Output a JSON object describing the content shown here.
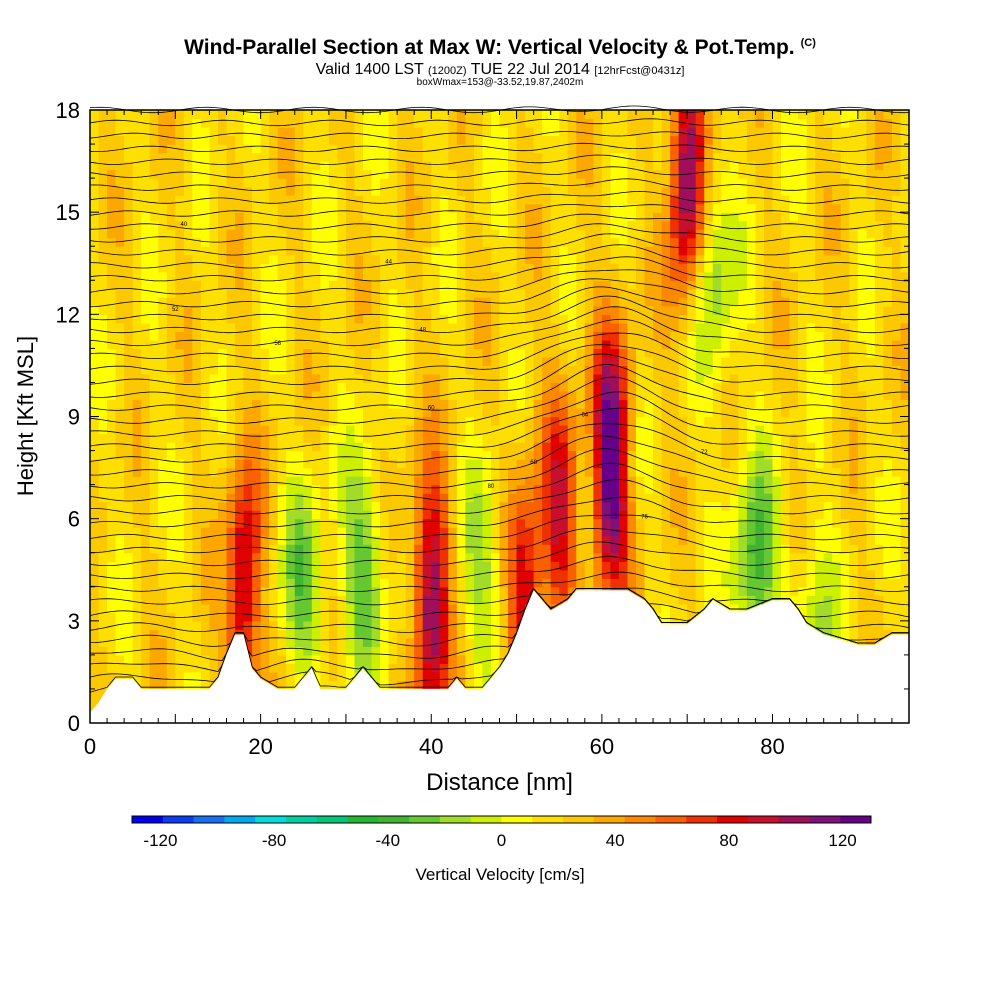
{
  "title": "Wind-Parallel Section at Max W: Vertical Velocity & Pot.Temp.",
  "title_mark": "(C)",
  "subtitle": {
    "part1": "Valid 1400 LST",
    "part2": "(1200Z)",
    "part3": "TUE 22 Jul 2014",
    "part4": "[12hrFcst@0431z]"
  },
  "subtitle2": "boxWmax=153@-33.52,19.87,2402m",
  "colors": {
    "scale": [
      "#0000ee",
      "#0a3cf0",
      "#1670f0",
      "#00aaf0",
      "#00dcdc",
      "#00d0a0",
      "#00c878",
      "#22b832",
      "#40b430",
      "#66c830",
      "#a0dc28",
      "#ccf000",
      "#ffff00",
      "#fde000",
      "#fcc800",
      "#fca800",
      "#fc8800",
      "#f86000",
      "#f03000",
      "#e00000",
      "#c8102e",
      "#a0105a",
      "#80107a",
      "#660088"
    ],
    "terrain": "#ffffff",
    "contour": "#000000"
  },
  "chart_data": {
    "type": "heatmap",
    "xlabel": "Distance [nm]",
    "ylabel": "Height [Kft MSL]",
    "xlim": [
      0,
      96
    ],
    "ylim": [
      0,
      18
    ],
    "xticks": [
      "0",
      "20",
      "40",
      "60",
      "80"
    ],
    "yticks": [
      "0",
      "3",
      "6",
      "9",
      "12",
      "15",
      "18"
    ],
    "colorbar": {
      "label": "Vertical Velocity [cm/s]",
      "ticks": [
        "-120",
        "-80",
        "-40",
        "0",
        "40",
        "80",
        "120"
      ],
      "range": [
        -130,
        130
      ],
      "step": 10
    },
    "terrain_profile": [
      [
        0,
        0.3
      ],
      [
        1,
        0.6
      ],
      [
        2,
        1.0
      ],
      [
        3,
        1.3
      ],
      [
        5,
        1.3
      ],
      [
        6,
        1.0
      ],
      [
        12,
        1.0
      ],
      [
        14,
        1.0
      ],
      [
        15,
        1.3
      ],
      [
        16,
        2.0
      ],
      [
        17,
        2.6
      ],
      [
        18,
        2.6
      ],
      [
        19,
        1.6
      ],
      [
        20,
        1.3
      ],
      [
        22,
        1.0
      ],
      [
        24,
        1.0
      ],
      [
        25,
        1.3
      ],
      [
        26,
        1.6
      ],
      [
        27,
        1.0
      ],
      [
        30,
        1.0
      ],
      [
        31,
        1.3
      ],
      [
        32,
        1.6
      ],
      [
        33,
        1.3
      ],
      [
        34,
        1.0
      ],
      [
        38,
        1.0
      ],
      [
        40,
        1.0
      ],
      [
        42,
        1.0
      ],
      [
        43,
        1.3
      ],
      [
        44,
        1.0
      ],
      [
        46,
        1.0
      ],
      [
        47,
        1.3
      ],
      [
        48,
        1.6
      ],
      [
        49,
        2.0
      ],
      [
        50,
        2.6
      ],
      [
        51,
        3.3
      ],
      [
        52,
        3.9
      ],
      [
        53,
        3.6
      ],
      [
        54,
        3.3
      ],
      [
        56,
        3.6
      ],
      [
        57,
        3.9
      ],
      [
        60,
        3.9
      ],
      [
        63,
        3.9
      ],
      [
        65,
        3.6
      ],
      [
        66,
        3.3
      ],
      [
        67,
        2.9
      ],
      [
        70,
        2.9
      ],
      [
        72,
        3.3
      ],
      [
        73,
        3.6
      ],
      [
        75,
        3.3
      ],
      [
        77,
        3.3
      ],
      [
        80,
        3.6
      ],
      [
        82,
        3.6
      ],
      [
        83,
        3.3
      ],
      [
        84,
        2.9
      ],
      [
        86,
        2.6
      ],
      [
        90,
        2.3
      ],
      [
        92,
        2.3
      ],
      [
        94,
        2.6
      ],
      [
        96,
        2.6
      ]
    ],
    "updrafts": [
      {
        "x": 18,
        "z": 3.8,
        "peak": 75
      },
      {
        "x": 40,
        "z": 3.5,
        "peak": 90
      },
      {
        "x": 51,
        "z": 3.8,
        "peak": 60
      },
      {
        "x": 55,
        "z": 6.0,
        "peak": 60
      },
      {
        "x": 61,
        "z": 7.5,
        "peak": 110
      },
      {
        "x": 70,
        "z": 16.0,
        "peak": 90
      }
    ],
    "downdrafts": [
      {
        "x": 25,
        "z": 4.0,
        "peak": -40
      },
      {
        "x": 32,
        "z": 4.5,
        "peak": -45
      },
      {
        "x": 46,
        "z": 4.5,
        "peak": -30
      },
      {
        "x": 73,
        "z": 13.0,
        "peak": -40
      },
      {
        "x": 78,
        "z": 4.5,
        "peak": -55
      },
      {
        "x": 85,
        "z": 2.8,
        "peak": -30
      }
    ],
    "contour_labels": [
      "40",
      "44",
      "48",
      "52",
      "56",
      "60",
      "64",
      "68",
      "72",
      "76",
      "80"
    ]
  }
}
